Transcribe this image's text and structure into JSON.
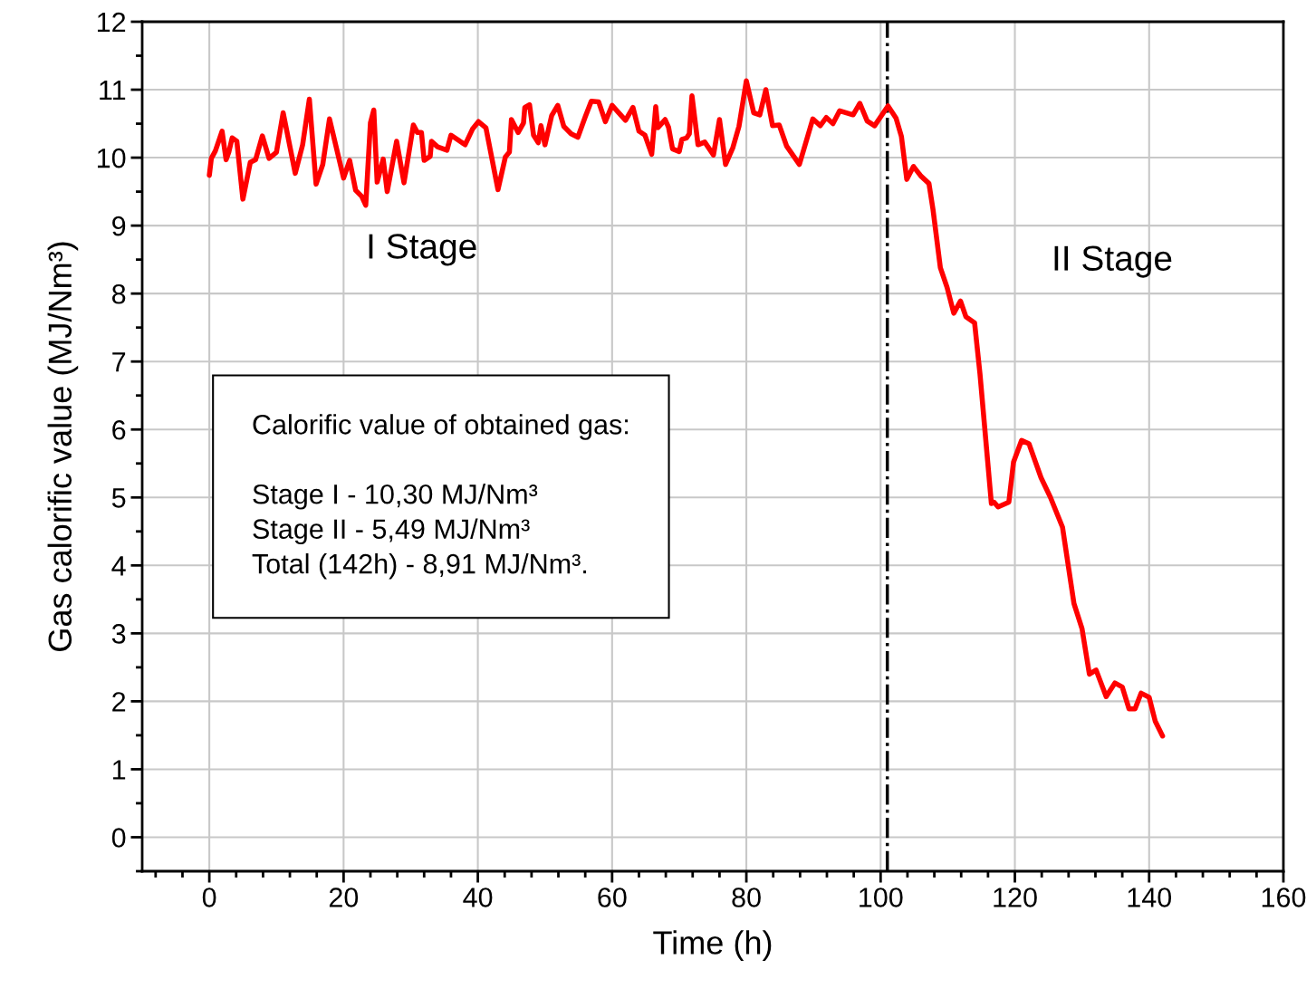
{
  "chart_data": {
    "type": "line",
    "xlabel": "Time (h)",
    "ylabel": "Gas calorific value (MJ/Nm³)",
    "xlim": [
      -10,
      160
    ],
    "xticks": [
      0,
      20,
      40,
      60,
      80,
      100,
      120,
      140,
      160
    ],
    "ylim": [
      -0.5,
      12
    ],
    "yticks": [
      0,
      1,
      2,
      3,
      4,
      5,
      6,
      7,
      8,
      9,
      10,
      11,
      12
    ],
    "grid": true,
    "marker": "none",
    "line_style": "solid",
    "series": [
      {
        "color": "#ff0000",
        "x": [
          0,
          0.3,
          0.9,
          1.9,
          2.5,
          2.9,
          3.4,
          4.1,
          5.0,
          6.1,
          6.9,
          7.9,
          8.9,
          10.0,
          11.0,
          12.8,
          13.9,
          14.9,
          15.9,
          16.9,
          17.9,
          20.0,
          20.9,
          21.8,
          22.7,
          23.3,
          24.0,
          24.5,
          25.0,
          25.9,
          26.5,
          27.9,
          29.0,
          30.4,
          31.0,
          31.6,
          32.0,
          32.9,
          33.1,
          34.0,
          35.4,
          36.0,
          38.1,
          39.2,
          40.1,
          41.2,
          43.0,
          44.1,
          44.7,
          45.0,
          46.0,
          46.8,
          47.0,
          47.7,
          48.3,
          49.0,
          49.4,
          50.0,
          51.0,
          51.9,
          52.8,
          53.9,
          54.9,
          56.0,
          56.9,
          58.0,
          59.0,
          60.0,
          62.0,
          63.1,
          64.0,
          64.9,
          65.9,
          66.5,
          66.8,
          67.9,
          68.4,
          69.0,
          70.0,
          70.4,
          71.1,
          71.5,
          71.9,
          72.8,
          73.8,
          75.1,
          76.0,
          76.9,
          78.0,
          78.9,
          80.0,
          81.1,
          82.0,
          82.9,
          83.9,
          84.9,
          86.0,
          87.9,
          89.9,
          91.0,
          91.9,
          92.9,
          93.9,
          95.9,
          96.9,
          98.0,
          99.1,
          101.1,
          102.3,
          103.1,
          103.9,
          104.9,
          106.0,
          107.2,
          107.8,
          108.9,
          109.9,
          110.9,
          111.9,
          112.7,
          114.0,
          114.8,
          116.5,
          116.9,
          117.5,
          119.1,
          119.8,
          121.0,
          122.1,
          123.9,
          125.3,
          127.1,
          128.8,
          130.0,
          131.1,
          132.1,
          133.6,
          134.9,
          136.0,
          137.0,
          137.9,
          138.8,
          140.0,
          140.9,
          142.0
        ],
        "values": [
          9.74,
          9.99,
          10.1,
          10.39,
          9.97,
          10.08,
          10.29,
          10.24,
          9.39,
          9.93,
          9.97,
          10.32,
          9.99,
          10.08,
          10.66,
          9.77,
          10.19,
          10.86,
          9.61,
          9.9,
          10.57,
          9.7,
          9.96,
          9.52,
          9.43,
          9.3,
          10.51,
          10.7,
          9.64,
          9.98,
          9.5,
          10.24,
          9.63,
          10.48,
          10.37,
          10.37,
          9.96,
          10.02,
          10.24,
          10.16,
          10.11,
          10.33,
          10.19,
          10.42,
          10.53,
          10.44,
          9.53,
          10.01,
          10.08,
          10.56,
          10.37,
          10.51,
          10.74,
          10.78,
          10.33,
          10.22,
          10.47,
          10.19,
          10.62,
          10.77,
          10.46,
          10.35,
          10.3,
          10.6,
          10.83,
          10.82,
          10.53,
          10.77,
          10.55,
          10.74,
          10.39,
          10.33,
          10.05,
          10.75,
          10.44,
          10.56,
          10.45,
          10.13,
          10.09,
          10.27,
          10.29,
          10.35,
          10.91,
          10.19,
          10.23,
          10.04,
          10.56,
          9.9,
          10.15,
          10.46,
          11.13,
          10.66,
          10.63,
          11.0,
          10.47,
          10.48,
          10.17,
          9.9,
          10.57,
          10.47,
          10.59,
          10.5,
          10.69,
          10.63,
          10.8,
          10.54,
          10.47,
          10.76,
          10.58,
          10.31,
          9.68,
          9.87,
          9.73,
          9.62,
          9.24,
          8.38,
          8.09,
          7.71,
          7.89,
          7.66,
          7.57,
          6.82,
          4.91,
          4.93,
          4.86,
          4.93,
          5.52,
          5.84,
          5.79,
          5.29,
          5.0,
          4.56,
          3.44,
          3.07,
          2.4,
          2.46,
          2.07,
          2.27,
          2.21,
          1.89,
          1.89,
          2.12,
          2.06,
          1.71,
          1.49
        ]
      }
    ],
    "ref_lines": [
      {
        "axis": "x",
        "value": 101,
        "label": null,
        "color": "#000000",
        "line_style": "dashdot"
      }
    ],
    "annotations": [
      "I Stage",
      "II Stage",
      "Calorific value of obtained gas:\n\nStage I - 10,30 MJ/Nm³\nStage II - 5,49 MJ/Nm³\nTotal (142h) - 8,91 MJ/Nm³."
    ]
  }
}
